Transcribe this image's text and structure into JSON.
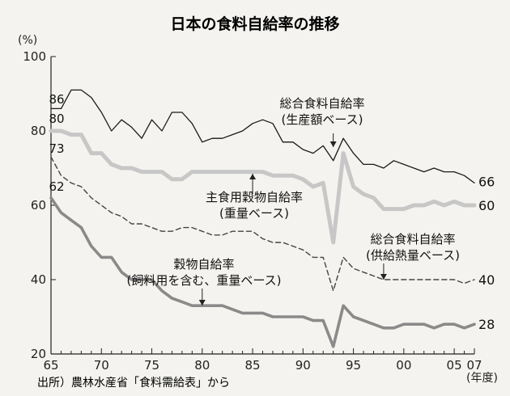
{
  "chart_data": {
    "type": "line",
    "title": "日本の食料自給率の推移",
    "y_unit": "(%)",
    "x_unit": "(年度)",
    "source": "出所）農林水産省「食料需給表」から",
    "xlim": [
      1965,
      2007
    ],
    "ylim": [
      20,
      100
    ],
    "x_ticks": [
      1965,
      1970,
      1975,
      1980,
      1985,
      1990,
      1995,
      2000,
      2005,
      2007
    ],
    "x_tick_labels": [
      "65",
      "70",
      "75",
      "80",
      "85",
      "90",
      "95",
      "00",
      "05",
      "07"
    ],
    "y_ticks": [
      20,
      40,
      60,
      80,
      100
    ],
    "y_tick_labels": [
      "20",
      "40",
      "60",
      "80",
      "100"
    ],
    "grid": false,
    "years": [
      1965,
      1966,
      1967,
      1968,
      1969,
      1970,
      1971,
      1972,
      1973,
      1974,
      1975,
      1976,
      1977,
      1978,
      1979,
      1980,
      1981,
      1982,
      1983,
      1984,
      1985,
      1986,
      1987,
      1988,
      1989,
      1990,
      1991,
      1992,
      1993,
      1994,
      1995,
      1996,
      1997,
      1998,
      1999,
      2000,
      2001,
      2002,
      2003,
      2004,
      2005,
      2006,
      2007
    ],
    "series": [
      {
        "id": "production",
        "label_lines": [
          "総合食料自給率",
          "(生産額ベース)"
        ],
        "start_label": "86",
        "end_label": "66",
        "color": "#1a1a1a",
        "style": "thin",
        "values": [
          86,
          86,
          91,
          91,
          89,
          85,
          80,
          83,
          81,
          78,
          83,
          80,
          85,
          85,
          82,
          77,
          78,
          78,
          79,
          80,
          82,
          83,
          82,
          77,
          77,
          75,
          74,
          76,
          72,
          78,
          74,
          71,
          71,
          70,
          72,
          71,
          70,
          69,
          70,
          69,
          69,
          68,
          66
        ]
      },
      {
        "id": "staple",
        "label_lines": [
          "主食用穀物自給率",
          "(重量ベース)"
        ],
        "start_label": "80",
        "end_label": "60",
        "color": "#c7c7c7",
        "style": "thick",
        "values": [
          80,
          80,
          79,
          79,
          74,
          74,
          71,
          70,
          70,
          69,
          69,
          69,
          67,
          67,
          69,
          69,
          69,
          69,
          69,
          69,
          69,
          69,
          68,
          68,
          68,
          67,
          65,
          66,
          50,
          74,
          65,
          63,
          62,
          59,
          59,
          59,
          60,
          60,
          61,
          60,
          61,
          60,
          60
        ]
      },
      {
        "id": "calorie",
        "label_lines": [
          "総合食料自給率",
          "(供給熱量ベース)"
        ],
        "start_label": "73",
        "end_label": "40",
        "color": "#444444",
        "style": "dashed",
        "values": [
          73,
          68,
          66,
          65,
          62,
          60,
          58,
          57,
          55,
          55,
          54,
          53,
          53,
          54,
          54,
          53,
          52,
          52,
          53,
          53,
          53,
          51,
          50,
          50,
          49,
          48,
          46,
          46,
          37,
          46,
          43,
          42,
          41,
          40,
          40,
          40,
          40,
          40,
          40,
          40,
          40,
          39,
          40
        ]
      },
      {
        "id": "grain",
        "label_lines": [
          "穀物自給率",
          "(飼料用を含む、重量ベース)"
        ],
        "start_label": "62",
        "end_label": "28",
        "color": "#8a8a8a",
        "style": "thick",
        "values": [
          62,
          58,
          56,
          54,
          49,
          46,
          46,
          42,
          40,
          40,
          40,
          37,
          35,
          34,
          33,
          33,
          33,
          33,
          32,
          31,
          31,
          31,
          30,
          30,
          30,
          30,
          29,
          29,
          22,
          33,
          30,
          29,
          28,
          27,
          27,
          28,
          28,
          28,
          27,
          28,
          28,
          27,
          28
        ]
      }
    ]
  }
}
